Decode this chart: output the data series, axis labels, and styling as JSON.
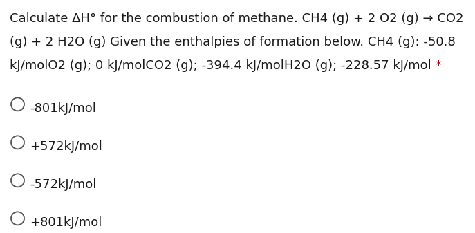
{
  "question_line1": "Calculate ΔH° for the combustion of methane. CH4 (g) + 2 O2 (g) → CO2",
  "question_line2": "(g) + 2 H2O (g) Given the enthalpies of formation below. CH4 (g): -50.8",
  "question_line3_main": "kJ/molO2 (g); 0 kJ/molCO2 (g); -394.4 kJ/molH2O (g); -228.57 kJ/mol ",
  "question_line3_star": "*",
  "options": [
    "-801kJ/mol",
    "+572kJ/mol",
    "-572kJ/mol",
    "+801kJ/mol"
  ],
  "asterisk_color": "#cc0000",
  "text_color": "#1a1a1a",
  "bg_color": "#ffffff",
  "font_size": 13.0,
  "option_font_size": 13.0,
  "circle_color": "#555555",
  "fig_width": 6.87,
  "fig_height": 3.37,
  "dpi": 100
}
